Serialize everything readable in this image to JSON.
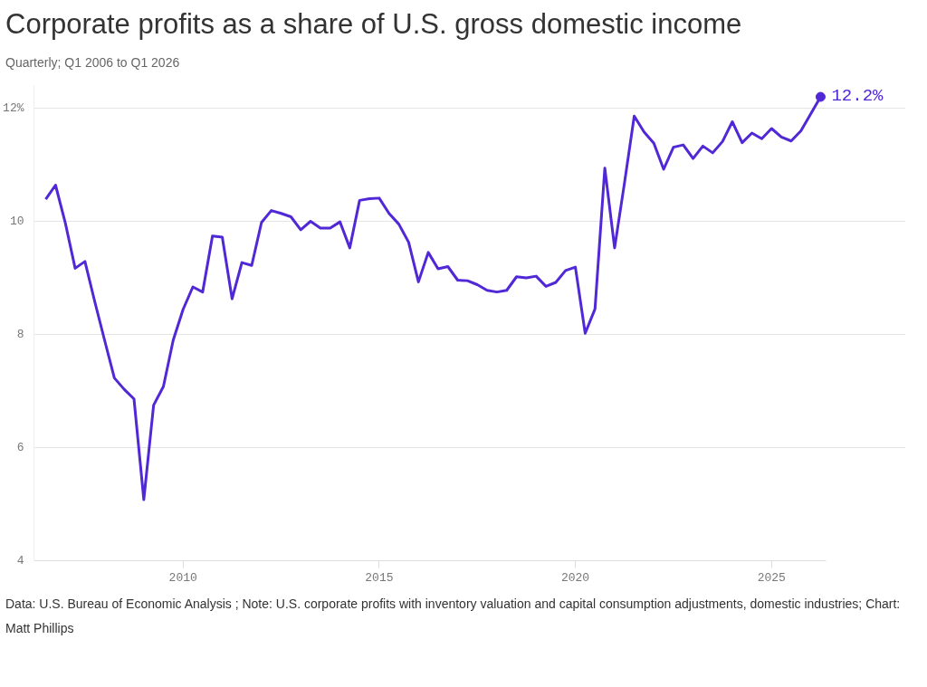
{
  "chart_data": {
    "type": "line",
    "title": "Corporate profits as a share of U.S. gross domestic income",
    "subtitle": "Quarterly; Q1 2006 to Q1 2026",
    "x": [
      2006.5,
      2006.75,
      2007,
      2007.25,
      2007.5,
      2007.75,
      2008,
      2008.25,
      2008.5,
      2008.75,
      2009,
      2009.25,
      2009.5,
      2009.75,
      2010,
      2010.25,
      2010.5,
      2010.75,
      2011,
      2011.25,
      2011.5,
      2011.75,
      2012,
      2012.25,
      2012.5,
      2012.75,
      2013,
      2013.25,
      2013.5,
      2013.75,
      2014,
      2014.25,
      2014.5,
      2014.75,
      2015,
      2015.25,
      2015.5,
      2015.75,
      2016,
      2016.25,
      2016.5,
      2016.75,
      2017,
      2017.25,
      2017.5,
      2017.75,
      2018,
      2018.25,
      2018.5,
      2018.75,
      2019,
      2019.25,
      2019.5,
      2019.75,
      2020,
      2020.25,
      2020.5,
      2020.75,
      2021,
      2021.25,
      2021.5,
      2021.75,
      2022,
      2022.25,
      2022.5,
      2022.75,
      2023,
      2023.25,
      2023.5,
      2023.75,
      2024,
      2024.25,
      2024.5,
      2024.75,
      2025,
      2025.25,
      2025.5,
      2025.75,
      2026,
      2026.25
    ],
    "series": [
      {
        "color": "#5128d6",
        "values": [
          10.39,
          10.64,
          9.97,
          9.17,
          9.29,
          8.58,
          7.9,
          7.23,
          7.03,
          6.86,
          5.08,
          6.75,
          7.08,
          7.9,
          8.44,
          8.84,
          8.75,
          9.74,
          9.72,
          8.63,
          9.27,
          9.22,
          9.98,
          10.19,
          10.14,
          10.08,
          9.85,
          10.0,
          9.88,
          9.88,
          9.99,
          9.53,
          10.37,
          10.4,
          10.41,
          10.14,
          9.95,
          9.63,
          8.93,
          9.45,
          9.16,
          9.2,
          8.96,
          8.95,
          8.88,
          8.78,
          8.75,
          8.78,
          9.02,
          9.0,
          9.03,
          8.85,
          8.92,
          9.13,
          9.19,
          8.02,
          8.45,
          10.94,
          9.53,
          10.67,
          11.86,
          11.58,
          11.38,
          10.92,
          11.31,
          11.35,
          11.11,
          11.33,
          11.21,
          11.41,
          11.76,
          11.39,
          11.56,
          11.46,
          11.64,
          11.49,
          11.42,
          11.6,
          11.9,
          12.2
        ]
      }
    ],
    "xlim": [
      2006.2,
      2026.4
    ],
    "xticks": [
      2010,
      2015,
      2020,
      2025
    ],
    "ylim": [
      4,
      12.4
    ],
    "yticks": [
      4,
      6,
      8,
      10,
      {
        "value": 12,
        "label": "12%"
      }
    ],
    "grid": "y",
    "marker": "none",
    "line_style": "solid",
    "annotations": [
      {
        "text": "12.2%",
        "x": 2026.25,
        "y": 12.2
      },
      "Data: U.S. Bureau of Economic Analysis ; Note: U.S. corporate profits with inventory valuation and capital consumption adjustments, domestic industries; Chart: Matt Phillips"
    ]
  }
}
